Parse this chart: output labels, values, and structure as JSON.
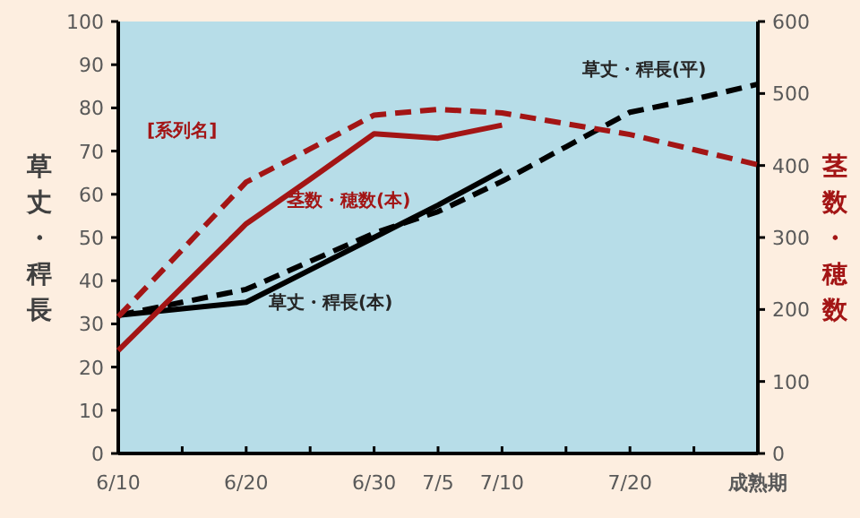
{
  "chart_data": {
    "type": "line",
    "ylabel": "草丈・稈長",
    "y2label": "茎数・穂数",
    "categories": [
      "6/10",
      null,
      "6/20",
      null,
      "6/30",
      "7/5",
      "7/10",
      null,
      "7/20",
      null,
      "成熟期"
    ],
    "ylim": [
      0,
      100
    ],
    "yticks": [
      0,
      10,
      20,
      30,
      40,
      50,
      60,
      70,
      80,
      90,
      100
    ],
    "y2lim": [
      0,
      600
    ],
    "y2ticks": [
      0,
      100,
      200,
      300,
      400,
      500,
      600
    ],
    "series": [
      {
        "name": "草丈・稈長(本)",
        "color": "#000000",
        "line_style": "solid",
        "values": [
          32,
          33.5,
          35,
          42.5,
          50,
          57.5,
          65.5,
          null,
          null,
          null,
          null
        ]
      },
      {
        "name": "草丈・稈長(平)",
        "color": "#000000",
        "line_style": "dashed",
        "values": [
          32,
          35,
          38,
          44.5,
          51,
          56,
          63,
          71,
          79,
          82,
          85.5
        ]
      },
      {
        "name": "茎数・穂数(本)",
        "color": "#a31515",
        "line_style": "solid",
        "axis": "y2",
        "values": [
          143,
          231,
          319,
          381,
          444,
          438,
          456,
          null,
          null,
          null,
          null
        ]
      },
      {
        "name": "[系列名]",
        "color": "#a31515",
        "line_style": "dashed",
        "axis": "y2",
        "values": [
          190,
          283,
          377,
          423,
          470,
          478,
          473,
          458,
          443,
          422,
          401
        ]
      }
    ]
  }
}
